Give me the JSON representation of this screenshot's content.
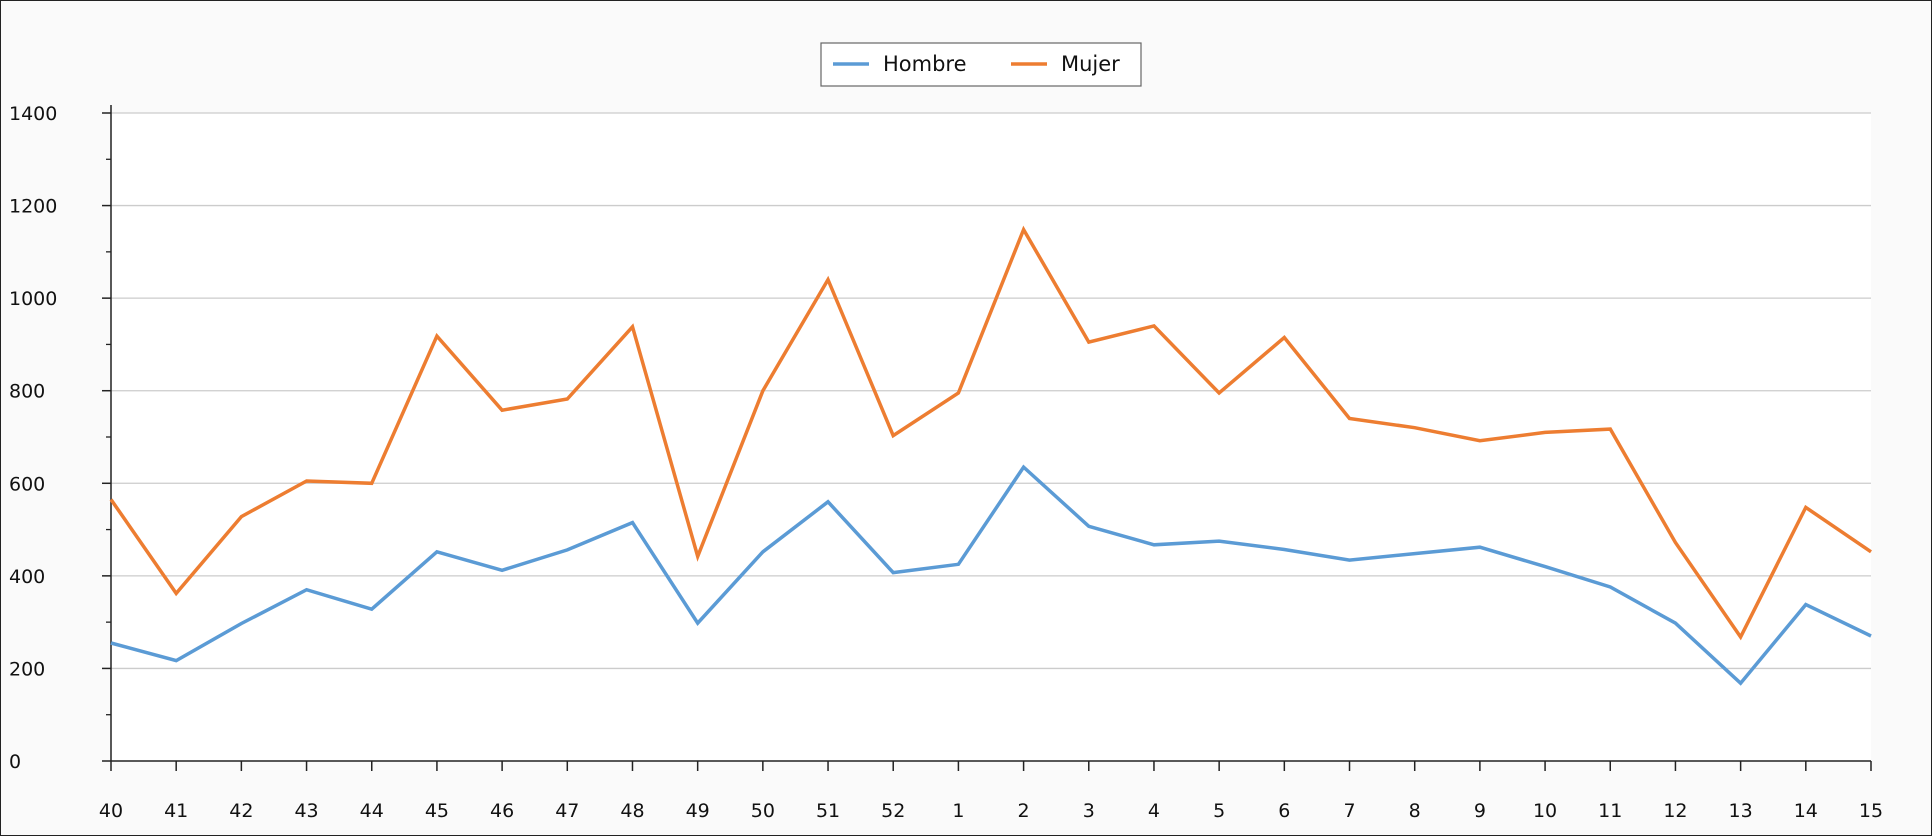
{
  "chart_data": {
    "type": "line",
    "title": "",
    "xlabel": "",
    "ylabel": "",
    "categories": [
      "40",
      "41",
      "42",
      "43",
      "44",
      "45",
      "46",
      "47",
      "48",
      "49",
      "50",
      "51",
      "52",
      "1",
      "2",
      "3",
      "4",
      "5",
      "6",
      "7",
      "8",
      "9",
      "10",
      "11",
      "12",
      "13",
      "14",
      "15"
    ],
    "ylim": [
      0,
      1400
    ],
    "yticks": [
      0,
      200,
      400,
      600,
      800,
      1000,
      1200,
      1400
    ],
    "grid": true,
    "legend_position": "top-center",
    "series": [
      {
        "name": "Hombre",
        "color": "#5b9bd5",
        "values": [
          255,
          217,
          297,
          370,
          328,
          452,
          412,
          456,
          515,
          298,
          452,
          560,
          407,
          425,
          635,
          507,
          467,
          475,
          457,
          434,
          448,
          462,
          420,
          376,
          298,
          168,
          338,
          270
        ]
      },
      {
        "name": "Mujer",
        "color": "#ed7d31",
        "values": [
          565,
          362,
          528,
          605,
          600,
          918,
          758,
          782,
          938,
          442,
          800,
          1040,
          703,
          795,
          1148,
          905,
          940,
          795,
          915,
          740,
          720,
          692,
          710,
          717,
          472,
          268,
          548,
          452
        ]
      }
    ]
  }
}
